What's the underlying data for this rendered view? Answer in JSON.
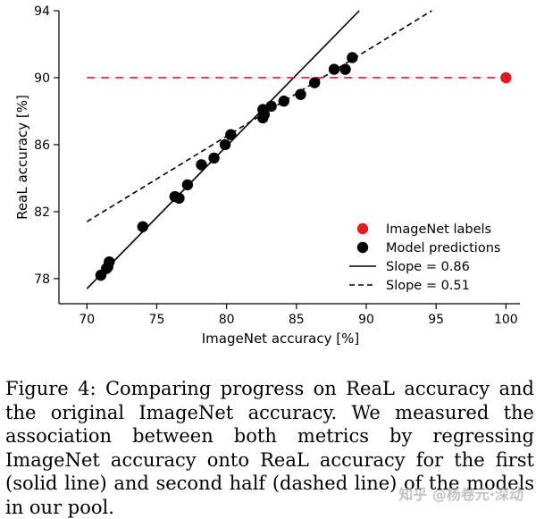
{
  "chart_data": {
    "type": "scatter",
    "xlabel": "ImageNet accuracy [%]",
    "ylabel": "ReaL accuracy [%]",
    "xlim": [
      68,
      101
    ],
    "ylim": [
      76.5,
      94
    ],
    "xticks": [
      70,
      75,
      80,
      85,
      90,
      95,
      100
    ],
    "yticks": [
      78,
      82,
      86,
      90,
      94
    ],
    "grid": false,
    "legend_position": "bottom-right",
    "series": [
      {
        "name": "ImageNet labels",
        "kind": "point",
        "color": "#e41a1c",
        "points": [
          [
            100,
            90
          ]
        ]
      },
      {
        "name": "Model predictions",
        "kind": "point",
        "color": "#000000",
        "points": [
          [
            71.0,
            78.2
          ],
          [
            71.4,
            78.6
          ],
          [
            71.5,
            78.7
          ],
          [
            71.6,
            79.0
          ],
          [
            74.0,
            81.1
          ],
          [
            76.3,
            82.9
          ],
          [
            76.6,
            82.8
          ],
          [
            77.2,
            83.6
          ],
          [
            78.2,
            84.8
          ],
          [
            79.1,
            85.2
          ],
          [
            79.9,
            86.0
          ],
          [
            80.3,
            86.6
          ],
          [
            82.6,
            87.6
          ],
          [
            82.7,
            87.8
          ],
          [
            82.6,
            88.1
          ],
          [
            83.2,
            88.3
          ],
          [
            84.1,
            88.6
          ],
          [
            85.3,
            89.0
          ],
          [
            86.3,
            89.7
          ],
          [
            87.7,
            90.5
          ],
          [
            88.5,
            90.5
          ],
          [
            89.0,
            91.2
          ]
        ]
      },
      {
        "name": "Slope = 0.86",
        "kind": "line",
        "style": "solid",
        "points": [
          [
            70.0,
            77.4
          ],
          [
            89.5,
            94.0
          ]
        ]
      },
      {
        "name": "Slope = 0.51",
        "kind": "line",
        "style": "dashed",
        "points": [
          [
            70.0,
            81.4
          ],
          [
            94.7,
            94.0
          ]
        ]
      },
      {
        "name": "ImageNet reference",
        "kind": "hline",
        "style": "dashed",
        "color": "#e41a1c",
        "y": 90,
        "x_range": [
          70,
          100
        ]
      }
    ],
    "legend": [
      {
        "label": "ImageNet labels",
        "marker": "dot",
        "color": "#e41a1c"
      },
      {
        "label": "Model predictions",
        "marker": "dot",
        "color": "#000000"
      },
      {
        "label": "Slope = 0.86",
        "marker": "solid-line",
        "color": "#000000"
      },
      {
        "label": "Slope = 0.51",
        "marker": "dashed-line",
        "color": "#000000"
      }
    ]
  },
  "caption": {
    "text": "Figure 4: Comparing progress on ReaL accuracy and the original ImageNet accuracy. We measured the association between both metrics by regressing ImageNet accuracy onto ReaL accuracy for the first (solid line) and second half (dashed line) of the models in our pool."
  },
  "watermark": {
    "text": "知乎 @杨卷元·深动"
  }
}
